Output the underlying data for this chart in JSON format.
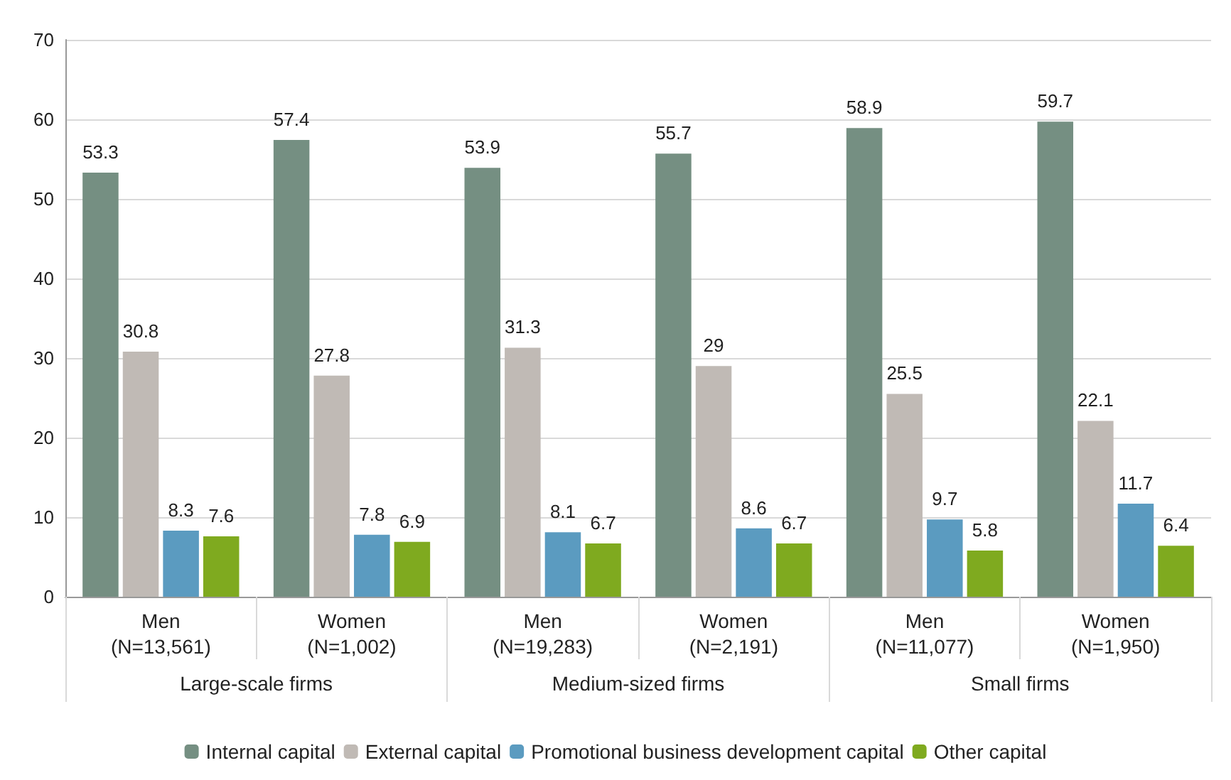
{
  "chart_data": {
    "type": "bar",
    "categories": [
      "Men\n(N=13,561)",
      "Women\n(N=1,002)",
      "Men\n(N=19,283)",
      "Women\n(N=2,191)",
      "Men\n(N=11,077)",
      "Women\n(N=1,950)"
    ],
    "series": [
      {
        "name": "Internal capital",
        "color": "#758f82",
        "values": [
          53.3,
          57.4,
          53.9,
          55.7,
          58.9,
          59.7
        ]
      },
      {
        "name": "External capital",
        "color": "#c0bab5",
        "values": [
          30.8,
          27.8,
          31.3,
          29,
          25.5,
          22.1
        ]
      },
      {
        "name": "Promotional business development capital",
        "color": "#5b9bc0",
        "values": [
          8.3,
          7.8,
          8.1,
          8.6,
          9.7,
          11.7
        ]
      },
      {
        "name": "Other capital",
        "color": "#7faa1f",
        "values": [
          7.6,
          6.9,
          6.7,
          6.7,
          5.8,
          6.4
        ]
      }
    ],
    "annotations": [
      "Large-scale firms",
      "Medium-sized firms",
      "Small firms"
    ],
    "ylim": [
      0,
      70
    ],
    "yticks": [
      0,
      10,
      20,
      30,
      40,
      50,
      60,
      70
    ],
    "grid": "y",
    "legend": "bottom",
    "data_labels": true
  }
}
